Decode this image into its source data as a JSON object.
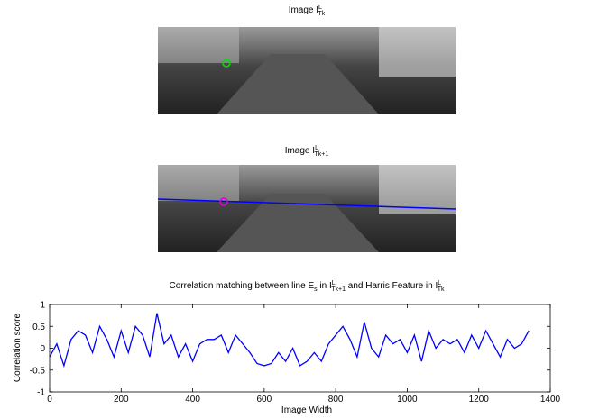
{
  "images": [
    {
      "title": [
        {
          "base": "Image I"
        },
        {
          "sup": "L"
        },
        {
          "sub": "Tk"
        }
      ]
    },
    {
      "title": [
        {
          "base": "Image I"
        },
        {
          "sup": "L"
        },
        {
          "sub": "Tk+1"
        }
      ]
    }
  ],
  "chart_data": {
    "type": "line",
    "title": [
      {
        "base": "Correlation matching between line E"
      },
      {
        "sub": "s"
      },
      {
        "base": " in I"
      },
      {
        "sup": "L"
      },
      {
        "sub": "Tk+1"
      },
      {
        "base": " and Harris Feature in I"
      },
      {
        "sup": "L"
      },
      {
        "sub": "Tk"
      }
    ],
    "xlabel": "Image Width",
    "ylabel": "Correlation score",
    "x": [
      0,
      20,
      40,
      60,
      80,
      100,
      120,
      140,
      160,
      180,
      200,
      220,
      240,
      260,
      280,
      300,
      320,
      340,
      360,
      380,
      400,
      420,
      440,
      460,
      480,
      500,
      520,
      540,
      560,
      580,
      600,
      620,
      640,
      660,
      680,
      700,
      720,
      740,
      760,
      780,
      800,
      820,
      840,
      860,
      880,
      900,
      920,
      940,
      960,
      980,
      1000,
      1020,
      1040,
      1060,
      1080,
      1100,
      1120,
      1140,
      1160,
      1180,
      1200,
      1220,
      1240,
      1260,
      1280,
      1300,
      1320,
      1340
    ],
    "series": [
      {
        "color": "#0000ff",
        "values": [
          -0.2,
          0.1,
          -0.4,
          0.2,
          0.4,
          0.3,
          -0.1,
          0.5,
          0.2,
          -0.2,
          0.4,
          -0.1,
          0.5,
          0.3,
          -0.2,
          0.8,
          0.1,
          0.3,
          -0.2,
          0.1,
          -0.3,
          0.1,
          0.2,
          0.2,
          0.3,
          -0.1,
          0.3,
          0.1,
          -0.1,
          -0.35,
          -0.4,
          -0.35,
          -0.1,
          -0.3,
          0,
          -0.4,
          -0.3,
          -0.1,
          -0.3,
          0.1,
          0.3,
          0.5,
          0.2,
          -0.2,
          0.6,
          0,
          -0.2,
          0.3,
          0.1,
          0.2,
          -0.1,
          0.3,
          -0.3,
          0.4,
          0,
          0.2,
          0.1,
          0.2,
          -0.1,
          0.3,
          0,
          0.4,
          0.1,
          -0.2,
          0.2,
          0,
          0.1,
          0.4
        ]
      }
    ],
    "xlim": [
      0,
      1400
    ],
    "ylim": [
      -1,
      1
    ],
    "xticks": [
      0,
      200,
      400,
      600,
      800,
      1000,
      1200,
      1400
    ],
    "yticks": [
      -1,
      -0.5,
      0,
      0.5,
      1
    ]
  }
}
